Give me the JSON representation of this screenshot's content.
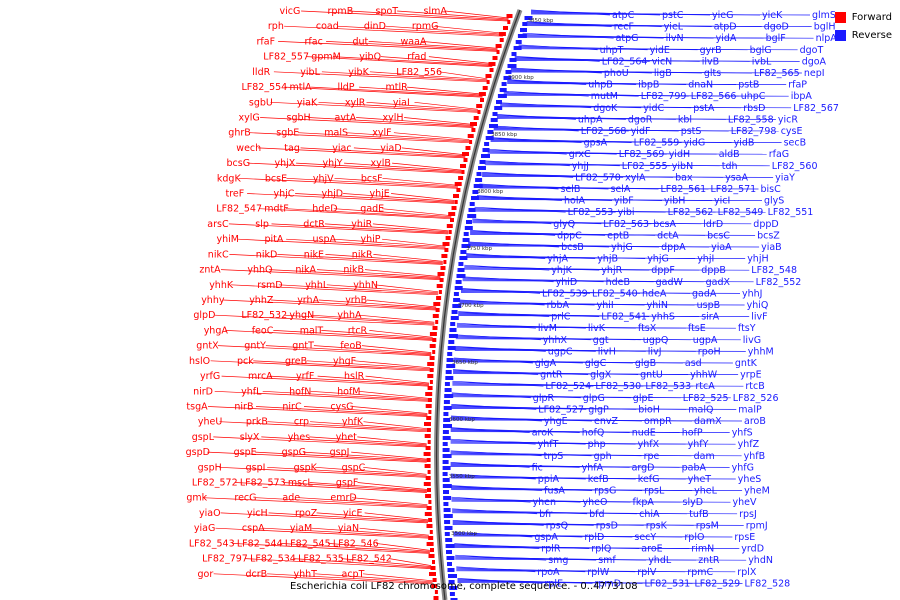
{
  "legend": {
    "forward_label": "Forward",
    "reverse_label": "Reverse",
    "forward_color": "#ff0000",
    "reverse_color": "#1a1aff"
  },
  "caption": "Escherichia coli LF82 chromosome, complete sequence. - 0..4773108",
  "ruler_ticks": [
    "3850 kbp",
    "3900 kbp",
    "3850 kbp",
    "3800 kbp",
    "3750 kbp",
    "3700 kbp",
    "3650 kbp",
    "3600 kbp",
    "3550 kbp",
    "3500 kbp"
  ],
  "forward_genes": [
    "slmA",
    "spoT",
    "rpmB",
    "vicG",
    "rpmG",
    "dinD",
    "coad",
    "rph",
    "waaA",
    "dut",
    "rfac",
    "rfaF",
    "rfad",
    "yibQ",
    "gpmM",
    "LF82_557",
    "LF82_556",
    "yibK",
    "yibL",
    "lldR",
    "mtlR",
    "lldP",
    "mtlA",
    "LF82_554",
    "yiaI",
    "xylR",
    "yiaK",
    "sgbU",
    "xylH",
    "avtA",
    "sgbH",
    "xylG",
    "xylF",
    "malS",
    "sgbE",
    "ghrB",
    "yiaD",
    "yiac",
    "tag",
    "wech",
    "xylB",
    "yhjY",
    "yhjX",
    "bcsG",
    "bcsF",
    "yhjV",
    "bcsE",
    "kdgK",
    "yhjE",
    "yhjD",
    "yhjC",
    "treF",
    "gadE",
    "hdeD",
    "mdtF",
    "LF82_547",
    "yhiR",
    "dctR",
    "slp",
    "arsC",
    "yhiP",
    "uspA",
    "pitA",
    "yhiM",
    "nikR",
    "nikE",
    "nikD",
    "nikC",
    "nikB",
    "nikA",
    "yhhQ",
    "zntA",
    "yhhN",
    "yhhL",
    "rsmD",
    "yhhK",
    "yrhB",
    "yrhA",
    "yhhZ",
    "yhhy",
    "yhhA",
    "yhgN",
    "LF82_532",
    "glpD",
    "rtcR",
    "malT",
    "feoC",
    "yhgA",
    "feoB",
    "gntT",
    "gntY",
    "gntX",
    "yhgF",
    "greB",
    "pck",
    "hslO",
    "hslR",
    "yrfF",
    "mrcA",
    "yrfG",
    "hofM",
    "hofN",
    "yhfL",
    "nirD",
    "cysG",
    "nirC",
    "nirB",
    "tsgA",
    "yhfK",
    "crp",
    "prkB",
    "yheU",
    "yhet",
    "yhes",
    "slyX",
    "gspL",
    "gspJ",
    "gspG",
    "gspE",
    "gspD",
    "gspC",
    "gspK",
    "gspI",
    "gspH",
    "gspF",
    "mscL",
    "LF82_573",
    "LF82_572",
    "emrD",
    "ade",
    "recG",
    "gmk",
    "yicE",
    "rpoZ",
    "yicH",
    "yiaO",
    "yiaN",
    "yiaM",
    "cspA",
    "yiaG",
    "LF82_546",
    "LF82_545",
    "LF82_544",
    "LF82_543",
    "LF82_542",
    "LF82_535",
    "LF82_534",
    "LF82_797",
    "acpT",
    "yhhT",
    "dcrB",
    "gor"
  ],
  "reverse_genes": [
    "atpC",
    "pstC",
    "yieG",
    "yieK",
    "glmS",
    "recF",
    "yieL",
    "atpD",
    "dgoD",
    "bglH",
    "atpG",
    "ilvN",
    "yidA",
    "bglF",
    "nlpA",
    "uhpT",
    "yidE",
    "gyrB",
    "bglG",
    "dgoT",
    "LF82_564",
    "vicN",
    "ilvB",
    "ivbL",
    "dgoA",
    "phoU",
    "ligB",
    "glts",
    "LF82_565",
    "nepI",
    "uhpB",
    "ibpB",
    "dnaN",
    "pstB",
    "rfaP",
    "mutM",
    "LF82_799",
    "LF82_566",
    "uhpC",
    "ibpA",
    "dgoK",
    "yidC",
    "pstA",
    "rbsD",
    "LF82_567",
    "uhpA",
    "dgoR",
    "kbl",
    "LF82_558",
    "yicR",
    "LF82_568",
    "yidF",
    "pstS",
    "LF82_798",
    "cysE",
    "gpsA",
    "LF82_559",
    "yidG",
    "yidB",
    "secB",
    "grxC",
    "LF82_569",
    "yidH",
    "aldB",
    "rfaG",
    "yhjJ",
    "LF82_555",
    "yibN",
    "tdh",
    "LF82_560",
    "LF82_570",
    "xylA",
    "bax",
    "ysaA",
    "yiaY",
    "selB",
    "selA",
    "LF82_561",
    "LF82_571",
    "bisC",
    "holA",
    "yibF",
    "yibH",
    "yicI",
    "glyS",
    "LF82_553",
    "yibi",
    "LF82_562",
    "LF82_549",
    "LF82_551",
    "glyQ",
    "LF82_563",
    "bcsA",
    "ldrD",
    "dppD",
    "dppC",
    "eptB",
    "dctA",
    "bcsC",
    "bcsZ",
    "bcsB",
    "yhjG",
    "dppA",
    "yiaA",
    "yiaB",
    "yhjA",
    "yhjB",
    "yhjG",
    "yhjI",
    "yhjH",
    "yhjK",
    "yhjR",
    "dppF",
    "dppB",
    "LF82_548",
    "yhiD",
    "hdeB",
    "gadW",
    "gadX",
    "LF82_552",
    "LF82_539",
    "LF82_540",
    "hdeA",
    "gadA",
    "yhhJ",
    "rbbA",
    "yhiI",
    "yhiN",
    "uspB",
    "yhiQ",
    "prlC",
    "LF82_541",
    "yhhS",
    "sirA",
    "livF",
    "livM",
    "livK",
    "ftsX",
    "ftsE",
    "ftsY",
    "yhhX",
    "ggt",
    "ugpQ",
    "ugpA",
    "livG",
    "ugpC",
    "livH",
    "livJ",
    "rpoH",
    "yhhM",
    "glgA",
    "glgC",
    "glgB",
    "asd",
    "gntK",
    "gntR",
    "glgX",
    "gntU",
    "yhhW",
    "yrpE",
    "LF82_524",
    "LF82_530",
    "LF82_533",
    "rtcA",
    "rtcB",
    "glpR",
    "glpG",
    "glpE",
    "LF82_525",
    "LF82_526",
    "LF82_527",
    "glgP",
    "bioH",
    "malQ",
    "malP",
    "yhgE",
    "envZ",
    "ompR",
    "damX",
    "aroB",
    "aroK",
    "hofQ",
    "nudE",
    "hofP",
    "yhfS",
    "yhfT",
    "php",
    "yhfX",
    "yhfY",
    "yhfZ",
    "trpS",
    "gph",
    "rpe",
    "dam",
    "yhfB",
    "fic",
    "yhfA",
    "argD",
    "pabA",
    "yhfG",
    "ppiA",
    "kefB",
    "kefG",
    "yheT",
    "yheS",
    "fusA",
    "rpsG",
    "rpsL",
    "yheL",
    "yheM",
    "yhen",
    "yheO",
    "fkpA",
    "slyD",
    "yheV",
    "bfr",
    "bfd",
    "chiA",
    "tufB",
    "rpsJ",
    "rpsQ",
    "rpsD",
    "rpsK",
    "rpsM",
    "rpmJ",
    "gspA",
    "rplD",
    "secY",
    "rplO",
    "rpsE",
    "rplR",
    "rplQ",
    "aroE",
    "rimN",
    "yrdD",
    "smg",
    "smf",
    "yhdL",
    "zntR",
    "yhdN",
    "rpoA",
    "rplW",
    "rplV",
    "rpmC",
    "rplX",
    "rplE",
    "rpmD",
    "LF82_531",
    "LF82_529",
    "LF82_528"
  ]
}
